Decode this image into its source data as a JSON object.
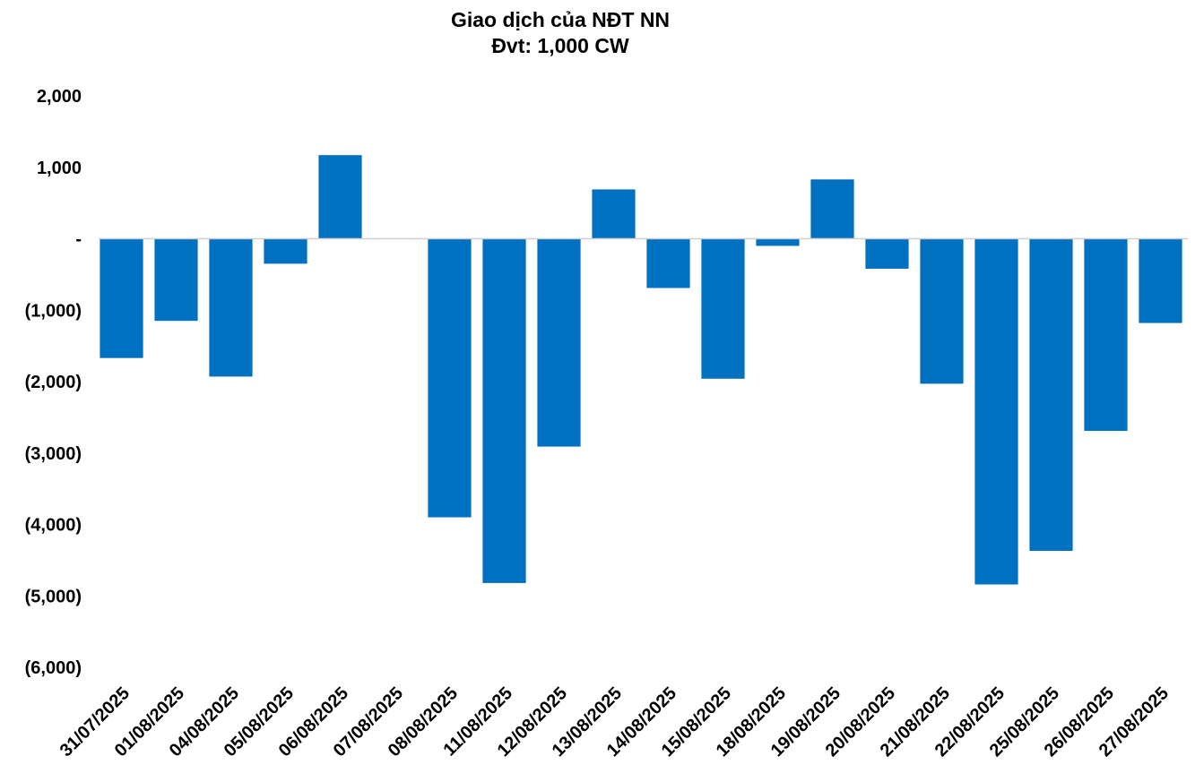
{
  "chart_data": {
    "type": "bar",
    "title": "Giao dịch của NĐT NN",
    "subtitle": "Đvt: 1,000 CW",
    "xlabel": "",
    "ylabel": "",
    "ylim": [
      -6000,
      2000
    ],
    "yticks": [
      {
        "value": 2000,
        "label": "2,000"
      },
      {
        "value": 1000,
        "label": "1,000"
      },
      {
        "value": 0,
        "label": "-"
      },
      {
        "value": -1000,
        "label": "(1,000)"
      },
      {
        "value": -2000,
        "label": "(2,000)"
      },
      {
        "value": -3000,
        "label": "(3,000)"
      },
      {
        "value": -4000,
        "label": "(4,000)"
      },
      {
        "value": -5000,
        "label": "(5,000)"
      },
      {
        "value": -6000,
        "label": "(6,000)"
      }
    ],
    "grid": false,
    "legend": "none",
    "bar_color": "#0070C0",
    "categories": [
      "31/07/2025",
      "01/08/2025",
      "04/08/2025",
      "05/08/2025",
      "06/08/2025",
      "07/08/2025",
      "08/08/2025",
      "11/08/2025",
      "12/08/2025",
      "13/08/2025",
      "14/08/2025",
      "15/08/2025",
      "18/08/2025",
      "19/08/2025",
      "20/08/2025",
      "21/08/2025",
      "22/08/2025",
      "25/08/2025",
      "26/08/2025",
      "27/08/2025"
    ],
    "values": [
      -1670,
      -1150,
      -1930,
      -350,
      1170,
      0,
      -3900,
      -4820,
      -2910,
      690,
      -690,
      -1960,
      -100,
      830,
      -420,
      -2030,
      -4840,
      -4370,
      -2690,
      -1180
    ]
  }
}
